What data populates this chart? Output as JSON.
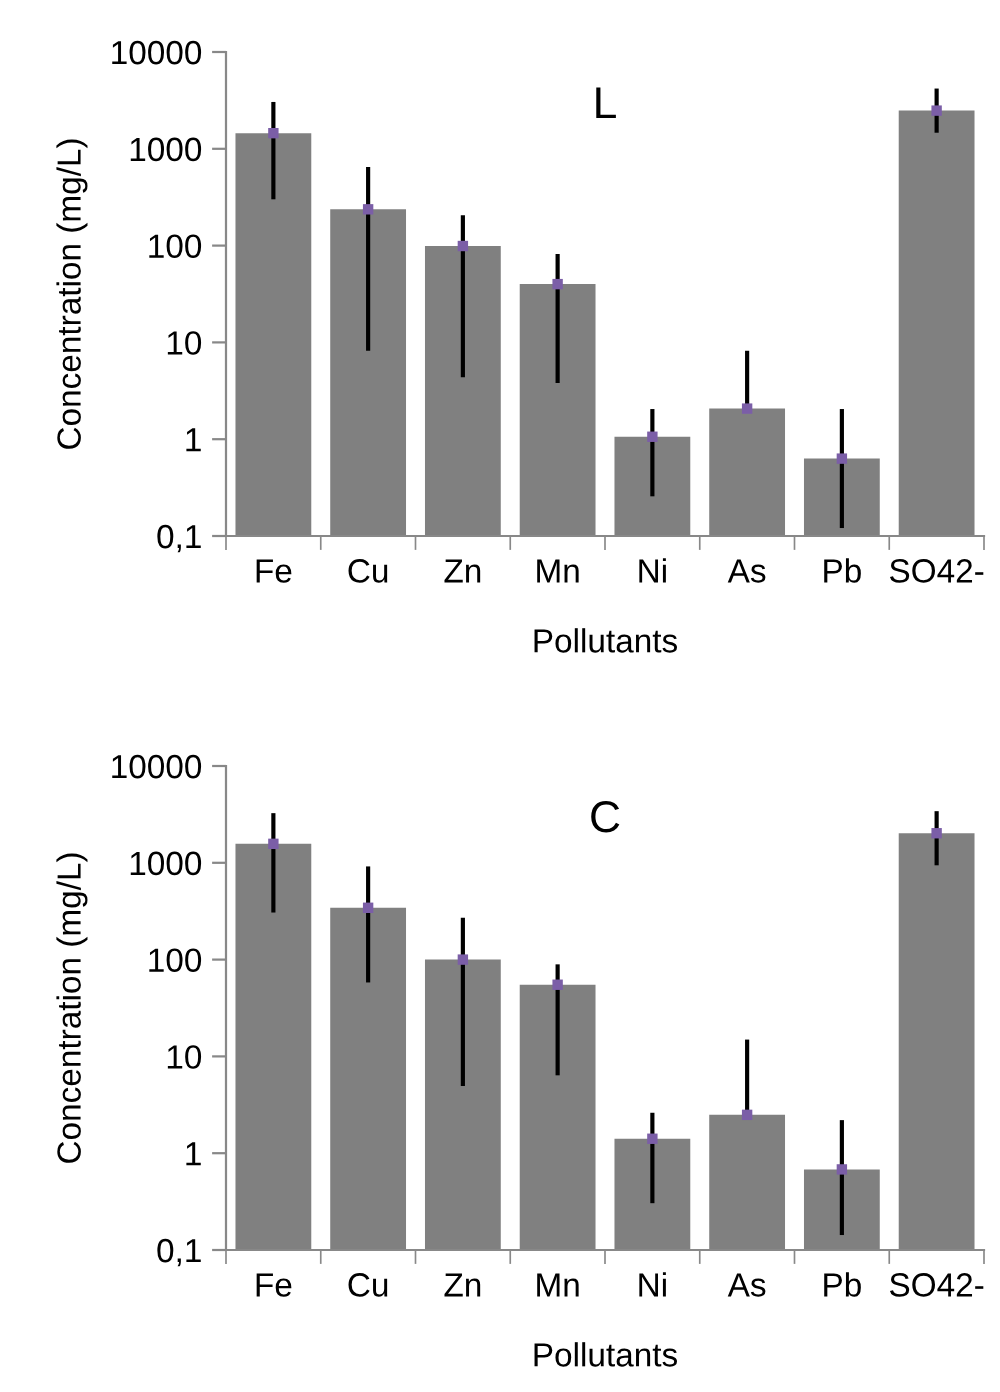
{
  "chart_data": [
    {
      "type": "bar",
      "title": "L",
      "xlabel": "Pollutants",
      "ylabel": "Concentration (mg/L)",
      "log": "y",
      "categories": [
        "Fe",
        "Cu",
        "Zn",
        "Mn",
        "Ni",
        "As",
        "Pb",
        "SO42-"
      ],
      "series": [
        {
          "color": "#808080",
          "values": [
            1450,
            237,
            99,
            40,
            1.06,
            2.07,
            0.63,
            2480
          ],
          "errors": [
            [
              316,
              2900
            ],
            [
              8.6,
              617
            ],
            [
              4.6,
              196
            ],
            [
              4.0,
              78
            ],
            [
              0.27,
              1.95
            ],
            [
              2.07,
              7.8
            ],
            [
              0.127,
              1.95
            ],
            [
              1540,
              3990
            ]
          ]
        },
        {
          "type": "scatter",
          "color": "#7b5ea7",
          "marker": "square",
          "x": [
            "Fe",
            "Cu",
            "Zn",
            "Mn",
            "Ni",
            "As",
            "Pb",
            "SO42-"
          ],
          "values": [
            1450,
            237,
            99,
            40,
            1.06,
            2.07,
            0.63,
            2480
          ]
        }
      ],
      "ylim": [
        0.1,
        10000
      ],
      "yticks": [
        {
          "value": 0.1,
          "label": "0,1"
        },
        1,
        10,
        100,
        1000,
        10000
      ],
      "grid": false,
      "legend": false
    },
    {
      "type": "bar",
      "title": "C",
      "xlabel": "Pollutants",
      "ylabel": "Concentration (mg/L)",
      "log": "y",
      "categories": [
        "Fe",
        "Cu",
        "Zn",
        "Mn",
        "Ni",
        "As",
        "Pb",
        "SO42-"
      ],
      "series": [
        {
          "color": "#808080",
          "values": [
            1570,
            343,
            100,
            55,
            1.41,
            2.49,
            0.68,
            2020
          ],
          "errors": [
            [
              322,
              3100
            ],
            [
              61,
              873
            ],
            [
              5.2,
              258
            ],
            [
              6.7,
              85
            ],
            [
              0.32,
              2.49
            ],
            [
              2.49,
              14.2
            ],
            [
              0.15,
              2.09
            ],
            [
              990,
              3250
            ]
          ]
        },
        {
          "type": "scatter",
          "color": "#7b5ea7",
          "marker": "square",
          "x": [
            "Fe",
            "Cu",
            "Zn",
            "Mn",
            "Ni",
            "As",
            "Pb",
            "SO42-"
          ],
          "values": [
            1570,
            343,
            100,
            55,
            1.41,
            2.49,
            0.68,
            2020
          ]
        }
      ],
      "ylim": [
        0.1,
        10000
      ],
      "yticks": [
        {
          "value": 0.1,
          "label": "0,1"
        },
        1,
        10,
        100,
        1000,
        10000
      ],
      "grid": false,
      "legend": false
    }
  ]
}
